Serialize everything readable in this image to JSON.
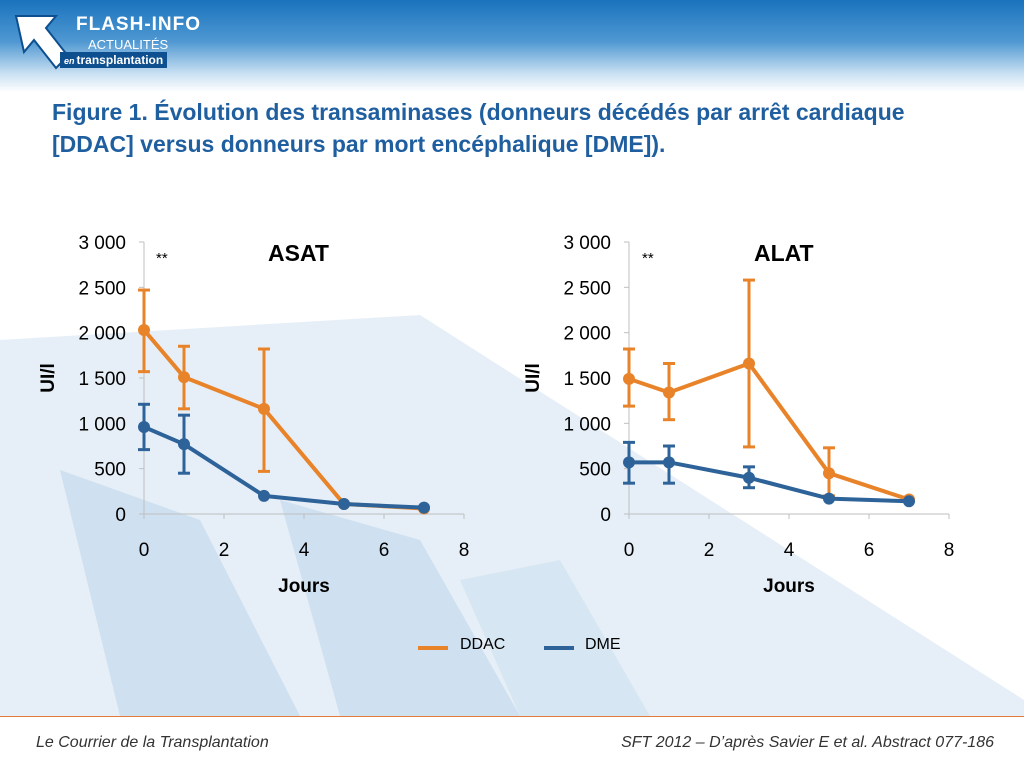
{
  "header": {
    "logo_line1": "FLASH-INFO",
    "logo_line2": "ACTUALITÉS",
    "logo_line3_prefix": "en",
    "logo_line3": "transplantation"
  },
  "title": "Figure 1. Évolution des transaminases (donneurs décédés par arrêt cardiaque [DDAC] versus donneurs par mort encéphalique [DME]).",
  "colors": {
    "DDAC": "#e8832a",
    "DME": "#2e6399",
    "title": "#1f5f9f",
    "footer_line": "#e07b39"
  },
  "chart_data": [
    {
      "type": "line",
      "title": "ASAT",
      "significance": "**",
      "xlabel": "Jours",
      "ylabel": "UI/l",
      "xlim": [
        0,
        8
      ],
      "ylim": [
        0,
        3000
      ],
      "xticks": [
        "0",
        "2",
        "4",
        "6",
        "8"
      ],
      "yticks": [
        "0",
        "500",
        "1 000",
        "1 500",
        "2 000",
        "2 500",
        "3 000"
      ],
      "series": [
        {
          "name": "DDAC",
          "x": [
            0,
            1,
            3,
            5,
            7
          ],
          "y": [
            2030,
            1510,
            1160,
            110,
            60
          ],
          "err_low": [
            1570,
            1160,
            470,
            null,
            null
          ],
          "err_high": [
            2470,
            1850,
            1820,
            null,
            null
          ]
        },
        {
          "name": "DME",
          "x": [
            0,
            1,
            3,
            5,
            7
          ],
          "y": [
            960,
            770,
            200,
            110,
            70
          ],
          "err_low": [
            710,
            450,
            null,
            null,
            null
          ],
          "err_high": [
            1210,
            1090,
            null,
            null,
            null
          ]
        }
      ]
    },
    {
      "type": "line",
      "title": "ALAT",
      "significance": "**",
      "xlabel": "Jours",
      "ylabel": "UI/l",
      "xlim": [
        0,
        8
      ],
      "ylim": [
        0,
        3000
      ],
      "xticks": [
        "0",
        "2",
        "4",
        "6",
        "8"
      ],
      "yticks": [
        "0",
        "500",
        "1 000",
        "1 500",
        "2 000",
        "2 500",
        "3 000"
      ],
      "series": [
        {
          "name": "DDAC",
          "x": [
            0,
            1,
            3,
            5,
            7
          ],
          "y": [
            1490,
            1340,
            1660,
            450,
            160
          ],
          "err_low": [
            1190,
            1040,
            740,
            200,
            null
          ],
          "err_high": [
            1820,
            1660,
            2580,
            730,
            null
          ]
        },
        {
          "name": "DME",
          "x": [
            0,
            1,
            3,
            5,
            7
          ],
          "y": [
            570,
            570,
            400,
            170,
            140
          ],
          "err_low": [
            340,
            340,
            290,
            null,
            null
          ],
          "err_high": [
            790,
            750,
            520,
            null,
            null
          ]
        }
      ]
    }
  ],
  "legend": {
    "items": [
      "DDAC",
      "DME"
    ]
  },
  "footer": {
    "left": "Le Courrier de la Transplantation",
    "right": "SFT 2012 – D’après Savier E et al. Abstract 077-186"
  }
}
